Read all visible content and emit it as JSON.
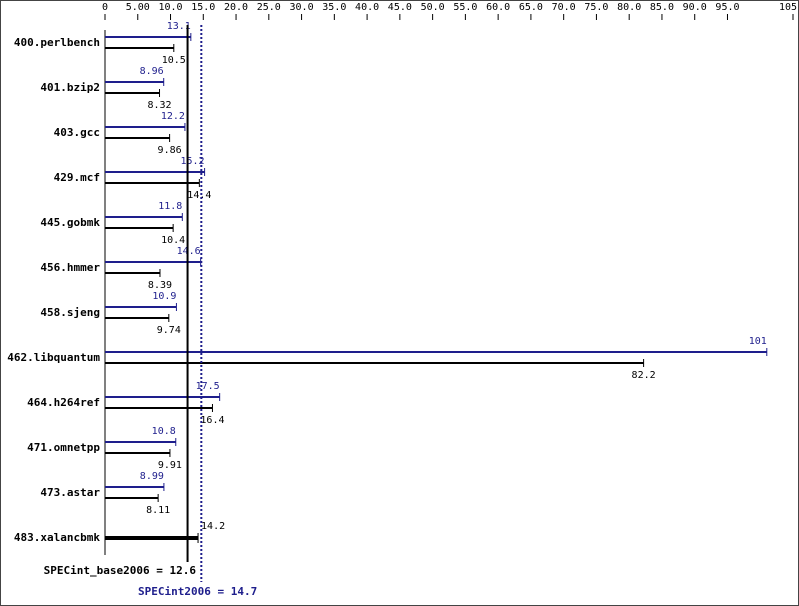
{
  "chart_data": {
    "type": "bar",
    "orientation": "horizontal",
    "categories": [
      "400.perlbench",
      "401.bzip2",
      "403.gcc",
      "429.mcf",
      "445.gobmk",
      "456.hmmer",
      "458.sjeng",
      "462.libquantum",
      "464.h264ref",
      "471.omnetpp",
      "473.astar",
      "483.xalancbmk"
    ],
    "series": [
      {
        "color": "#1e1e8c",
        "values": [
          13.1,
          8.96,
          12.2,
          15.2,
          11.8,
          14.6,
          10.9,
          101,
          17.5,
          10.8,
          8.99,
          null
        ]
      },
      {
        "color": "#000000",
        "values": [
          10.5,
          8.32,
          9.86,
          14.4,
          10.4,
          8.39,
          9.74,
          82.2,
          16.4,
          9.91,
          8.11,
          14.2
        ]
      }
    ],
    "xlim": [
      0,
      105
    ],
    "xticks": [
      0,
      {
        "value": 5,
        "label": "5.00"
      },
      {
        "value": 10,
        "label": "10.0"
      },
      {
        "value": 15,
        "label": "15.0"
      },
      {
        "value": 20,
        "label": "20.0"
      },
      {
        "value": 25,
        "label": "25.0"
      },
      {
        "value": 30,
        "label": "30.0"
      },
      {
        "value": 35,
        "label": "35.0"
      },
      {
        "value": 40,
        "label": "40.0"
      },
      {
        "value": 45,
        "label": "45.0"
      },
      {
        "value": 50,
        "label": "50.0"
      },
      {
        "value": 55,
        "label": "55.0"
      },
      {
        "value": 60,
        "label": "60.0"
      },
      {
        "value": 65,
        "label": "65.0"
      },
      {
        "value": 70,
        "label": "70.0"
      },
      {
        "value": 75,
        "label": "75.0"
      },
      {
        "value": 80,
        "label": "80.0"
      },
      {
        "value": 85,
        "label": "85.0"
      },
      {
        "value": 90,
        "label": "90.0"
      },
      {
        "value": 95,
        "label": "95.0"
      },
      105
    ],
    "base_score": {
      "value": 12.6,
      "label": "SPECint_base2006 = 12.6"
    },
    "peak_score": {
      "value": 14.7,
      "label": "SPECint2006 = 14.7"
    }
  }
}
